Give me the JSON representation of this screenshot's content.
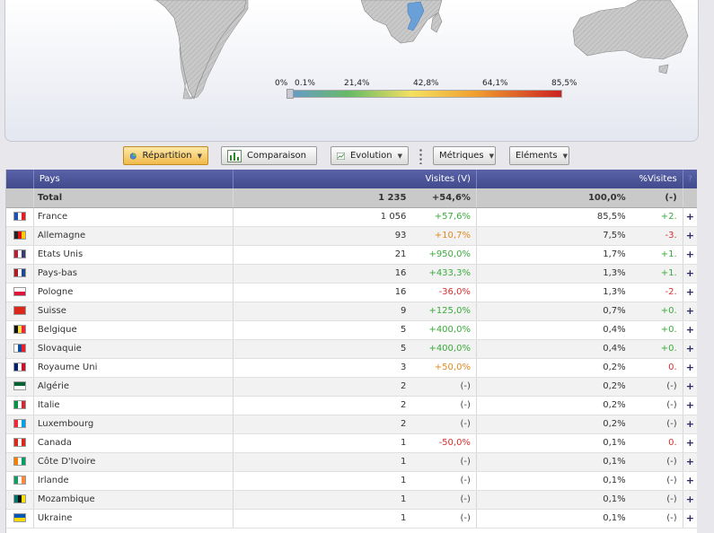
{
  "map": {
    "legend_labels": [
      "0%",
      "0.1%",
      "21,4%",
      "42,8%",
      "64,1%",
      "85,5%"
    ]
  },
  "toolbar": {
    "repartition": "Répartition",
    "comparaison": "Comparaison",
    "evolution": "Evolution",
    "metriques": "Métriques",
    "elements": "Eléments"
  },
  "table": {
    "headers": {
      "pays": "Pays",
      "visites": "Visites (V)",
      "pct": "%Visites",
      "help": "?"
    },
    "total": {
      "label": "Total",
      "visits": "1 235",
      "visits_var": "+54,6%",
      "pct": "100,0%",
      "pct_var": "(-)"
    },
    "rows": [
      {
        "country": "France",
        "flag": "france-flag-icon",
        "colors": [
          "#1f4fb0",
          "#ffffff",
          "#e02020"
        ],
        "visits": "1 056",
        "visits_var": "+57,6%",
        "vclass": "up",
        "pct": "85,5%",
        "pct_var": "+2.",
        "pclass": "up"
      },
      {
        "country": "Allemagne",
        "flag": "germany-flag-icon",
        "colors": [
          "#222222",
          "#dd1111",
          "#ffcc00"
        ],
        "visits": "93",
        "visits_var": "+10,7%",
        "vclass": "mid",
        "pct": "7,5%",
        "pct_var": "-3.",
        "pclass": "down"
      },
      {
        "country": "Etats Unis",
        "flag": "usa-flag-icon",
        "colors": [
          "#b22234",
          "#ffffff",
          "#3c3b6e"
        ],
        "visits": "21",
        "visits_var": "+950,0%",
        "vclass": "up",
        "pct": "1,7%",
        "pct_var": "+1.",
        "pclass": "up"
      },
      {
        "country": "Pays-bas",
        "flag": "netherlands-flag-icon",
        "colors": [
          "#ae1c28",
          "#ffffff",
          "#21468b"
        ],
        "visits": "16",
        "visits_var": "+433,3%",
        "vclass": "up",
        "pct": "1,3%",
        "pct_var": "+1.",
        "pclass": "up"
      },
      {
        "country": "Pologne",
        "flag": "poland-flag-icon",
        "colors": [
          "#ffffff",
          "#dc143c"
        ],
        "visits": "16",
        "visits_var": "-36,0%",
        "vclass": "down",
        "pct": "1,3%",
        "pct_var": "-2.",
        "pclass": "down"
      },
      {
        "country": "Suisse",
        "flag": "switzerland-flag-icon",
        "colors": [
          "#da291c"
        ],
        "visits": "9",
        "visits_var": "+125,0%",
        "vclass": "up",
        "pct": "0,7%",
        "pct_var": "+0.",
        "pclass": "up"
      },
      {
        "country": "Belgique",
        "flag": "belgium-flag-icon",
        "colors": [
          "#111111",
          "#fae042",
          "#ed2939"
        ],
        "visits": "5",
        "visits_var": "+400,0%",
        "vclass": "up",
        "pct": "0,4%",
        "pct_var": "+0.",
        "pclass": "up"
      },
      {
        "country": "Slovaquie",
        "flag": "slovakia-flag-icon",
        "colors": [
          "#ffffff",
          "#0b4ea2",
          "#ee1c25"
        ],
        "visits": "5",
        "visits_var": "+400,0%",
        "vclass": "up",
        "pct": "0,4%",
        "pct_var": "+0.",
        "pclass": "up"
      },
      {
        "country": "Royaume Uni",
        "flag": "uk-flag-icon",
        "colors": [
          "#012169",
          "#ffffff",
          "#c8102e"
        ],
        "visits": "3",
        "visits_var": "+50,0%",
        "vclass": "mid",
        "pct": "0,2%",
        "pct_var": "0.",
        "pclass": "down"
      },
      {
        "country": "Algérie",
        "flag": "algeria-flag-icon",
        "colors": [
          "#006233",
          "#ffffff"
        ],
        "visits": "2",
        "visits_var": "(-)",
        "vclass": "neutral",
        "pct": "0,2%",
        "pct_var": "(-)",
        "pclass": "neutral"
      },
      {
        "country": "Italie",
        "flag": "italy-flag-icon",
        "colors": [
          "#009246",
          "#ffffff",
          "#ce2b37"
        ],
        "visits": "2",
        "visits_var": "(-)",
        "vclass": "neutral",
        "pct": "0,2%",
        "pct_var": "(-)",
        "pclass": "neutral"
      },
      {
        "country": "Luxembourg",
        "flag": "luxembourg-flag-icon",
        "colors": [
          "#ed2939",
          "#ffffff",
          "#00a1de"
        ],
        "visits": "2",
        "visits_var": "(-)",
        "vclass": "neutral",
        "pct": "0,2%",
        "pct_var": "(-)",
        "pclass": "neutral"
      },
      {
        "country": "Canada",
        "flag": "canada-flag-icon",
        "colors": [
          "#d52b1e",
          "#ffffff",
          "#d52b1e"
        ],
        "visits": "1",
        "visits_var": "-50,0%",
        "vclass": "down",
        "pct": "0,1%",
        "pct_var": "0.",
        "pclass": "down"
      },
      {
        "country": "Côte D'Ivoire",
        "flag": "ivory-coast-flag-icon",
        "colors": [
          "#f77f00",
          "#ffffff",
          "#009e60"
        ],
        "visits": "1",
        "visits_var": "(-)",
        "vclass": "neutral",
        "pct": "0,1%",
        "pct_var": "(-)",
        "pclass": "neutral"
      },
      {
        "country": "Irlande",
        "flag": "ireland-flag-icon",
        "colors": [
          "#169b62",
          "#ffffff",
          "#ff883e"
        ],
        "visits": "1",
        "visits_var": "(-)",
        "vclass": "neutral",
        "pct": "0,1%",
        "pct_var": "(-)",
        "pclass": "neutral"
      },
      {
        "country": "Mozambique",
        "flag": "mozambique-flag-icon",
        "colors": [
          "#007168",
          "#111111",
          "#fce100"
        ],
        "visits": "1",
        "visits_var": "(-)",
        "vclass": "neutral",
        "pct": "0,1%",
        "pct_var": "(-)",
        "pclass": "neutral"
      },
      {
        "country": "Ukraine",
        "flag": "ukraine-flag-icon",
        "colors": [
          "#0057b7",
          "#ffd700"
        ],
        "visits": "1",
        "visits_var": "(-)",
        "vclass": "neutral",
        "pct": "0,1%",
        "pct_var": "(-)",
        "pclass": "neutral"
      }
    ]
  }
}
